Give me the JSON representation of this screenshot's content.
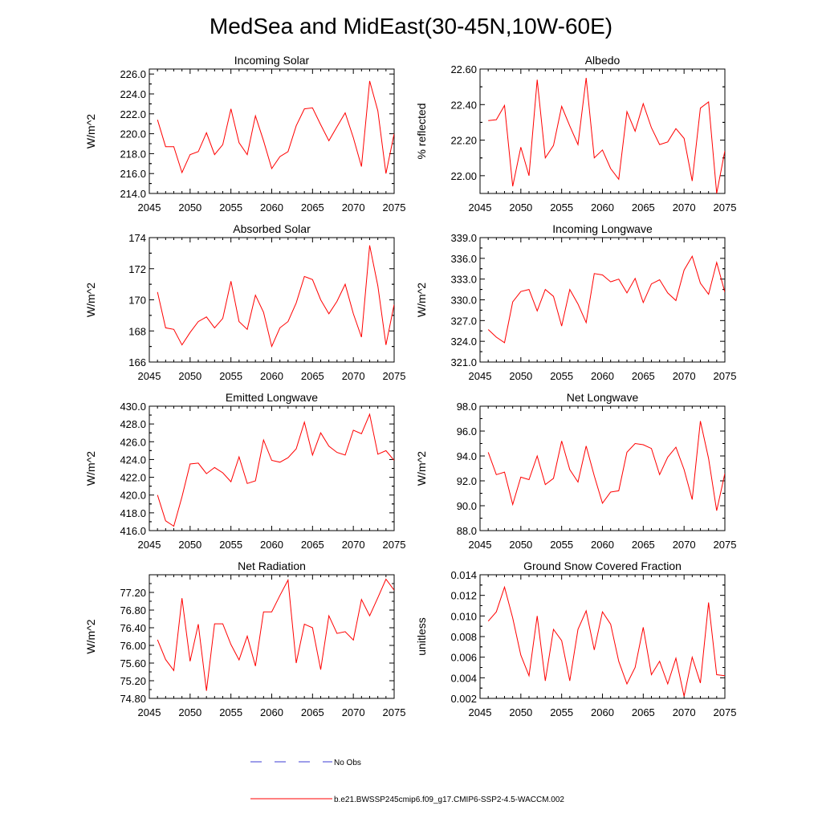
{
  "figure": {
    "title": "MedSea and MidEast(30-45N,10W-60E)",
    "legend": [
      {
        "label": "No Obs",
        "color": "#3b3bd6",
        "style": "dashed"
      },
      {
        "label": "b.e21.BWSSP245cmip6.f09_g17.CMIP6-SSP2-4.5-WACCM.002",
        "color": "#ff0000",
        "style": "solid"
      }
    ]
  },
  "chart_data": [
    {
      "type": "line",
      "title": "Incoming Solar",
      "ylabel": "W/m^2",
      "xlabel": "",
      "xlim": [
        2045,
        2075
      ],
      "ylim": [
        214,
        226.5
      ],
      "xticks": [
        2045,
        2050,
        2055,
        2060,
        2065,
        2070,
        2075
      ],
      "xtick_labels": [
        "2045",
        "2050",
        "2055",
        "2060",
        "2065",
        "2070",
        "2075"
      ],
      "yticks": [
        214,
        216,
        218,
        220,
        222,
        224,
        226
      ],
      "ytick_labels": [
        "214.0",
        "216.0",
        "218.0",
        "220.0",
        "222.0",
        "224.0",
        "226.0"
      ],
      "series": [
        {
          "color": "#ff0000",
          "x": [
            2046,
            2047,
            2048,
            2049,
            2050,
            2051,
            2052,
            2053,
            2054,
            2055,
            2056,
            2057,
            2058,
            2059,
            2060,
            2061,
            2062,
            2063,
            2064,
            2065,
            2066,
            2067,
            2068,
            2069,
            2070,
            2071,
            2072,
            2073,
            2074,
            2075
          ],
          "y": [
            221.4,
            218.7,
            218.7,
            216.1,
            217.9,
            218.2,
            220.1,
            217.9,
            218.9,
            222.5,
            219.1,
            217.9,
            221.8,
            219.3,
            216.5,
            217.7,
            218.2,
            220.8,
            222.5,
            222.6,
            220.9,
            219.3,
            220.7,
            222.1,
            219.6,
            216.7,
            225.3,
            222.3,
            216.0,
            220.0
          ]
        }
      ]
    },
    {
      "type": "line",
      "title": "Albedo",
      "ylabel": "% reflected",
      "xlabel": "",
      "xlim": [
        2045,
        2075
      ],
      "ylim": [
        21.9,
        22.6
      ],
      "xticks": [
        2045,
        2050,
        2055,
        2060,
        2065,
        2070,
        2075
      ],
      "xtick_labels": [
        "2045",
        "2050",
        "2055",
        "2060",
        "2065",
        "2070",
        "2075"
      ],
      "yticks": [
        22.0,
        22.2,
        22.4,
        22.6
      ],
      "ytick_labels": [
        "22.00",
        "22.20",
        "22.40",
        "22.60"
      ],
      "series": [
        {
          "color": "#ff0000",
          "x": [
            2046,
            2047,
            2048,
            2049,
            2050,
            2051,
            2052,
            2053,
            2054,
            2055,
            2056,
            2057,
            2058,
            2059,
            2060,
            2061,
            2062,
            2063,
            2064,
            2065,
            2066,
            2067,
            2068,
            2069,
            2070,
            2071,
            2072,
            2073,
            2074,
            2075
          ],
          "y": [
            22.31,
            22.315,
            22.395,
            21.94,
            22.16,
            22.0,
            22.54,
            22.1,
            22.17,
            22.39,
            22.28,
            22.175,
            22.55,
            22.1,
            22.145,
            22.04,
            21.98,
            22.36,
            22.25,
            22.405,
            22.27,
            22.175,
            22.19,
            22.265,
            22.21,
            21.97,
            22.38,
            22.415,
            21.9,
            22.14
          ]
        }
      ]
    },
    {
      "type": "line",
      "title": "Absorbed Solar",
      "ylabel": "W/m^2",
      "xlabel": "",
      "xlim": [
        2045,
        2075
      ],
      "ylim": [
        166,
        174
      ],
      "xticks": [
        2045,
        2050,
        2055,
        2060,
        2065,
        2070,
        2075
      ],
      "xtick_labels": [
        "2045",
        "2050",
        "2055",
        "2060",
        "2065",
        "2070",
        "2075"
      ],
      "yticks": [
        166,
        168,
        170,
        172,
        174
      ],
      "ytick_labels": [
        "166",
        "168",
        "170",
        "172",
        "174"
      ],
      "series": [
        {
          "color": "#ff0000",
          "x": [
            2046,
            2047,
            2048,
            2049,
            2050,
            2051,
            2052,
            2053,
            2054,
            2055,
            2056,
            2057,
            2058,
            2059,
            2060,
            2061,
            2062,
            2063,
            2064,
            2065,
            2066,
            2067,
            2068,
            2069,
            2070,
            2071,
            2072,
            2073,
            2074,
            2075
          ],
          "y": [
            170.5,
            168.2,
            168.1,
            167.1,
            167.9,
            168.6,
            168.9,
            168.2,
            168.8,
            171.2,
            168.6,
            168.1,
            170.3,
            169.2,
            167.0,
            168.2,
            168.6,
            169.8,
            171.5,
            171.3,
            170.0,
            169.1,
            169.9,
            171.0,
            169.1,
            167.6,
            173.5,
            170.9,
            167.1,
            169.7
          ]
        }
      ]
    },
    {
      "type": "line",
      "title": "Incoming Longwave",
      "ylabel": "W/m^2",
      "xlabel": "",
      "xlim": [
        2045,
        2075
      ],
      "ylim": [
        321,
        339
      ],
      "xticks": [
        2045,
        2050,
        2055,
        2060,
        2065,
        2070,
        2075
      ],
      "xtick_labels": [
        "2045",
        "2050",
        "2055",
        "2060",
        "2065",
        "2070",
        "2075"
      ],
      "yticks": [
        321,
        324,
        327,
        330,
        333,
        336,
        339
      ],
      "ytick_labels": [
        "321.0",
        "324.0",
        "327.0",
        "330.0",
        "333.0",
        "336.0",
        "339.0"
      ],
      "series": [
        {
          "color": "#ff0000",
          "x": [
            2046,
            2047,
            2048,
            2049,
            2050,
            2051,
            2052,
            2053,
            2054,
            2055,
            2056,
            2057,
            2058,
            2059,
            2060,
            2061,
            2062,
            2063,
            2064,
            2065,
            2066,
            2067,
            2068,
            2069,
            2070,
            2071,
            2072,
            2073,
            2074,
            2075
          ],
          "y": [
            325.7,
            324.6,
            323.8,
            329.7,
            331.2,
            331.5,
            328.4,
            331.5,
            330.5,
            326.2,
            331.5,
            329.4,
            326.7,
            333.8,
            333.6,
            332.6,
            333.0,
            331.0,
            333.1,
            329.6,
            332.3,
            332.9,
            331.0,
            329.9,
            334.3,
            336.3,
            332.4,
            330.8,
            335.4,
            331.1
          ]
        }
      ]
    },
    {
      "type": "line",
      "title": "Emitted Longwave",
      "ylabel": "W/m^2",
      "xlabel": "",
      "xlim": [
        2045,
        2075
      ],
      "ylim": [
        416,
        430
      ],
      "xticks": [
        2045,
        2050,
        2055,
        2060,
        2065,
        2070,
        2075
      ],
      "xtick_labels": [
        "2045",
        "2050",
        "2055",
        "2060",
        "2065",
        "2070",
        "2075"
      ],
      "yticks": [
        416,
        418,
        420,
        422,
        424,
        426,
        428,
        430
      ],
      "ytick_labels": [
        "416.0",
        "418.0",
        "420.0",
        "422.0",
        "424.0",
        "426.0",
        "428.0",
        "430.0"
      ],
      "series": [
        {
          "color": "#ff0000",
          "x": [
            2046,
            2047,
            2048,
            2049,
            2050,
            2051,
            2052,
            2053,
            2054,
            2055,
            2056,
            2057,
            2058,
            2059,
            2060,
            2061,
            2062,
            2063,
            2064,
            2065,
            2066,
            2067,
            2068,
            2069,
            2070,
            2071,
            2072,
            2073,
            2074,
            2075
          ],
          "y": [
            420.0,
            417.1,
            416.5,
            419.8,
            423.5,
            423.6,
            422.4,
            423.1,
            422.5,
            421.5,
            424.3,
            421.3,
            421.6,
            426.2,
            423.9,
            423.7,
            424.2,
            425.2,
            428.2,
            424.5,
            427.0,
            425.5,
            424.8,
            424.5,
            427.3,
            426.9,
            429.1,
            424.6,
            425.0,
            423.9
          ]
        }
      ]
    },
    {
      "type": "line",
      "title": "Net Longwave",
      "ylabel": "W/m^2",
      "xlabel": "",
      "xlim": [
        2045,
        2075
      ],
      "ylim": [
        88,
        98
      ],
      "xticks": [
        2045,
        2050,
        2055,
        2060,
        2065,
        2070,
        2075
      ],
      "xtick_labels": [
        "2045",
        "2050",
        "2055",
        "2060",
        "2065",
        "2070",
        "2075"
      ],
      "yticks": [
        88,
        90,
        92,
        94,
        96,
        98
      ],
      "ytick_labels": [
        "88.0",
        "90.0",
        "92.0",
        "94.0",
        "96.0",
        "98.0"
      ],
      "series": [
        {
          "color": "#ff0000",
          "x": [
            2046,
            2047,
            2048,
            2049,
            2050,
            2051,
            2052,
            2053,
            2054,
            2055,
            2056,
            2057,
            2058,
            2059,
            2060,
            2061,
            2062,
            2063,
            2064,
            2065,
            2066,
            2067,
            2068,
            2069,
            2070,
            2071,
            2072,
            2073,
            2074,
            2075
          ],
          "y": [
            94.3,
            92.5,
            92.7,
            90.1,
            92.3,
            92.1,
            94.0,
            91.7,
            92.2,
            95.2,
            92.9,
            91.9,
            94.8,
            92.4,
            90.2,
            91.1,
            91.2,
            94.3,
            95.0,
            94.9,
            94.6,
            92.5,
            93.9,
            94.7,
            92.9,
            90.5,
            96.8,
            93.8,
            89.6,
            92.6
          ]
        }
      ]
    },
    {
      "type": "line",
      "title": "Net Radiation",
      "ylabel": "W/m^2",
      "xlabel": "",
      "xlim": [
        2045,
        2075
      ],
      "ylim": [
        74.8,
        77.6
      ],
      "xticks": [
        2045,
        2050,
        2055,
        2060,
        2065,
        2070,
        2075
      ],
      "xtick_labels": [
        "2045",
        "2050",
        "2055",
        "2060",
        "2065",
        "2070",
        "2075"
      ],
      "yticks": [
        74.8,
        75.2,
        75.6,
        76.0,
        76.4,
        76.8,
        77.2
      ],
      "ytick_labels": [
        "74.80",
        "75.20",
        "75.60",
        "76.00",
        "76.40",
        "76.80",
        "77.20"
      ],
      "series": [
        {
          "color": "#ff0000",
          "x": [
            2046,
            2047,
            2048,
            2049,
            2050,
            2051,
            2052,
            2053,
            2054,
            2055,
            2056,
            2057,
            2058,
            2059,
            2060,
            2061,
            2062,
            2063,
            2064,
            2065,
            2066,
            2067,
            2068,
            2069,
            2070,
            2071,
            2072,
            2073,
            2074,
            2075
          ],
          "y": [
            76.13,
            75.68,
            75.43,
            77.07,
            75.64,
            76.48,
            74.97,
            76.49,
            76.49,
            76.02,
            75.67,
            76.21,
            75.53,
            76.76,
            76.76,
            77.13,
            77.48,
            75.6,
            76.48,
            76.4,
            75.45,
            76.67,
            76.27,
            76.31,
            76.12,
            77.04,
            76.67,
            77.08,
            77.5,
            77.25
          ]
        }
      ]
    },
    {
      "type": "line",
      "title": "Ground Snow Covered Fraction",
      "ylabel": "unitless",
      "xlabel": "",
      "xlim": [
        2045,
        2075
      ],
      "ylim": [
        0.002,
        0.014
      ],
      "xticks": [
        2045,
        2050,
        2055,
        2060,
        2065,
        2070,
        2075
      ],
      "xtick_labels": [
        "2045",
        "2050",
        "2055",
        "2060",
        "2065",
        "2070",
        "2075"
      ],
      "yticks": [
        0.002,
        0.004,
        0.006,
        0.008,
        0.01,
        0.012,
        0.014
      ],
      "ytick_labels": [
        "0.002",
        "0.004",
        "0.006",
        "0.008",
        "0.010",
        "0.012",
        "0.014"
      ],
      "series": [
        {
          "color": "#ff0000",
          "x": [
            2046,
            2047,
            2048,
            2049,
            2050,
            2051,
            2052,
            2053,
            2054,
            2055,
            2056,
            2057,
            2058,
            2059,
            2060,
            2061,
            2062,
            2063,
            2064,
            2065,
            2066,
            2067,
            2068,
            2069,
            2070,
            2071,
            2072,
            2073,
            2074,
            2075
          ],
          "y": [
            0.0095,
            0.0104,
            0.0128,
            0.0098,
            0.0062,
            0.0042,
            0.01,
            0.0037,
            0.0087,
            0.0076,
            0.0037,
            0.0087,
            0.0105,
            0.0067,
            0.0104,
            0.0092,
            0.0056,
            0.0034,
            0.005,
            0.0089,
            0.0043,
            0.0056,
            0.0034,
            0.0059,
            0.0022,
            0.006,
            0.0035,
            0.0113,
            0.0043,
            0.0042
          ]
        }
      ]
    }
  ]
}
